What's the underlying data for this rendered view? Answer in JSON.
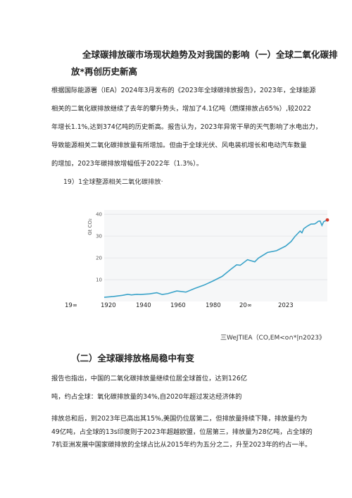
{
  "section1": {
    "heading_line1": "全球碳排放碳市场现状趋势及对我国的影响（一）全球二氧化碳排",
    "heading_line2": "放*再创历史新高",
    "para_lines": [
      "根据国际能源署（IEA）2024年3月发布的《2023年全球碳排放报告》，2023年，全球能源",
      "相关的二氧化碳排放继续了去年的攀升势头，增加了4.1亿吨（燃煤排放占65%）,较2022",
      "年增长1.1%,达到374亿吨的历史新高。报告认为，2023年异常干旱的天气影响了水电出力，",
      "导致能源相关二氧化碳排放量有所增加。但由于全球光伏、风电装机增长和电动汽车数量",
      "的增加，2023年碳排放增幅低于2022年（1.3%）。"
    ]
  },
  "figure": {
    "caption": "19）1全球整源相关二氧化碳排放·",
    "y_unit": "Gt CO₂",
    "y_ticks": [
      "10",
      "20",
      "30",
      "40"
    ],
    "x_labels": [
      "19∞",
      "1920",
      "1940",
      "1960",
      "1980",
      "20∞",
      "2023"
    ],
    "source": "三WeJTIEA（CO,EM<o∩*|n2023》",
    "line_color": "#3aa3c9",
    "marker_color": "#d33a2c"
  },
  "chart_data": {
    "type": "line",
    "ylabel": "Gt CO₂",
    "ylim": [
      0,
      42
    ],
    "xlim": [
      1900,
      2023
    ],
    "grid": true,
    "series": [
      {
        "x": [
          1900,
          1905,
          1910,
          1913,
          1915,
          1918,
          1920,
          1925,
          1929,
          1932,
          1935,
          1940,
          1945,
          1950,
          1955,
          1960,
          1965,
          1970,
          1973,
          1975,
          1979,
          1980,
          1983,
          1985,
          1990,
          1995,
          2000,
          2003,
          2005,
          2008,
          2009,
          2010,
          2012,
          2014,
          2015,
          2016,
          2017,
          2018,
          2019,
          2020,
          2021,
          2022,
          2023
        ],
        "y": [
          1.9,
          2.3,
          2.8,
          3.3,
          3.0,
          3.3,
          3.2,
          3.5,
          4.0,
          3.2,
          3.6,
          4.8,
          4.3,
          6.0,
          7.5,
          9.4,
          11.5,
          14.9,
          16.8,
          16.6,
          19.2,
          18.9,
          18.2,
          19.9,
          22.5,
          23.3,
          25.4,
          27.5,
          29.7,
          32.3,
          31.5,
          33.4,
          34.6,
          35.5,
          35.5,
          35.6,
          36.1,
          36.8,
          36.9,
          34.9,
          36.6,
          37.0,
          37.4
        ]
      }
    ],
    "highlight": {
      "x": 2023,
      "y": 37.4
    }
  },
  "section2": {
    "heading": "（二）全球碳排放格局稳中有变",
    "para_lines": [
      "报告也指出，中国的二氧化碳排放量继续位居全球首位，达到126亿",
      "吨，约占全球：氧化碳排放量的34%,自2020年超过发达经济体的",
      "排放总和后，到2023年已高出其15%,美国仍位居第二，但排放量持续下降，排放量约为",
      "49亿吨，占全球的13s印度则于2023年超越欧盟，位居第三，排放量为28亿吨，占全球的",
      "7机亚洲发展中国家碳排放的全球占比从2015年约为五分之二，升至2023年的约占一半。"
    ]
  }
}
